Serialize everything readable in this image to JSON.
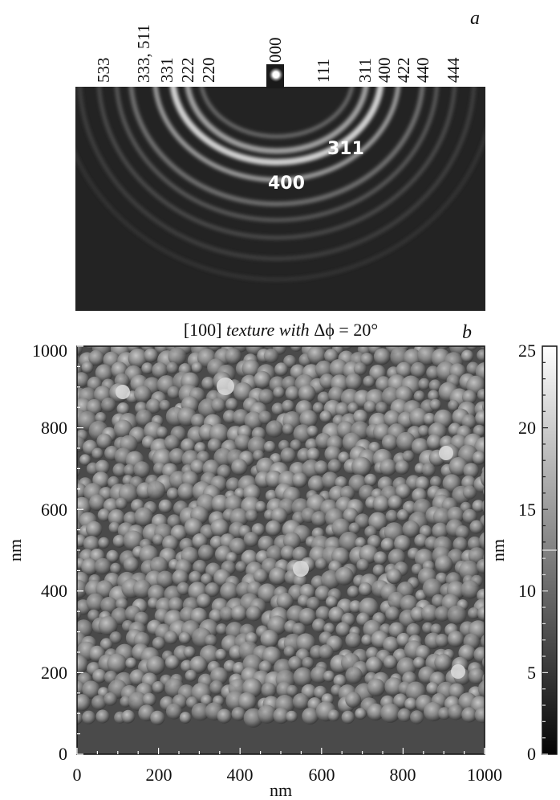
{
  "panel_a": {
    "label": "a",
    "top_indices": [
      "533",
      "333, 511",
      "331",
      "222",
      "220",
      "000",
      "111",
      "311",
      "400",
      "422",
      "440",
      "444"
    ],
    "ring_labels": [
      "311",
      "400"
    ]
  },
  "panel_b": {
    "label": "b",
    "title_prefix": "[100] ",
    "title_italic": "texture with ",
    "title_suffix": "Δϕ = 20°",
    "xlabel": "nm",
    "ylabel": "nm",
    "x_ticks": [
      "0",
      "200",
      "400",
      "600",
      "800",
      "1000"
    ],
    "y_ticks": [
      "0",
      "200",
      "400",
      "600",
      "800",
      "1000"
    ],
    "colorbar_ticks": [
      "0",
      "5",
      "10",
      "15",
      "20",
      "25"
    ],
    "colorbar_label": "nm"
  }
}
